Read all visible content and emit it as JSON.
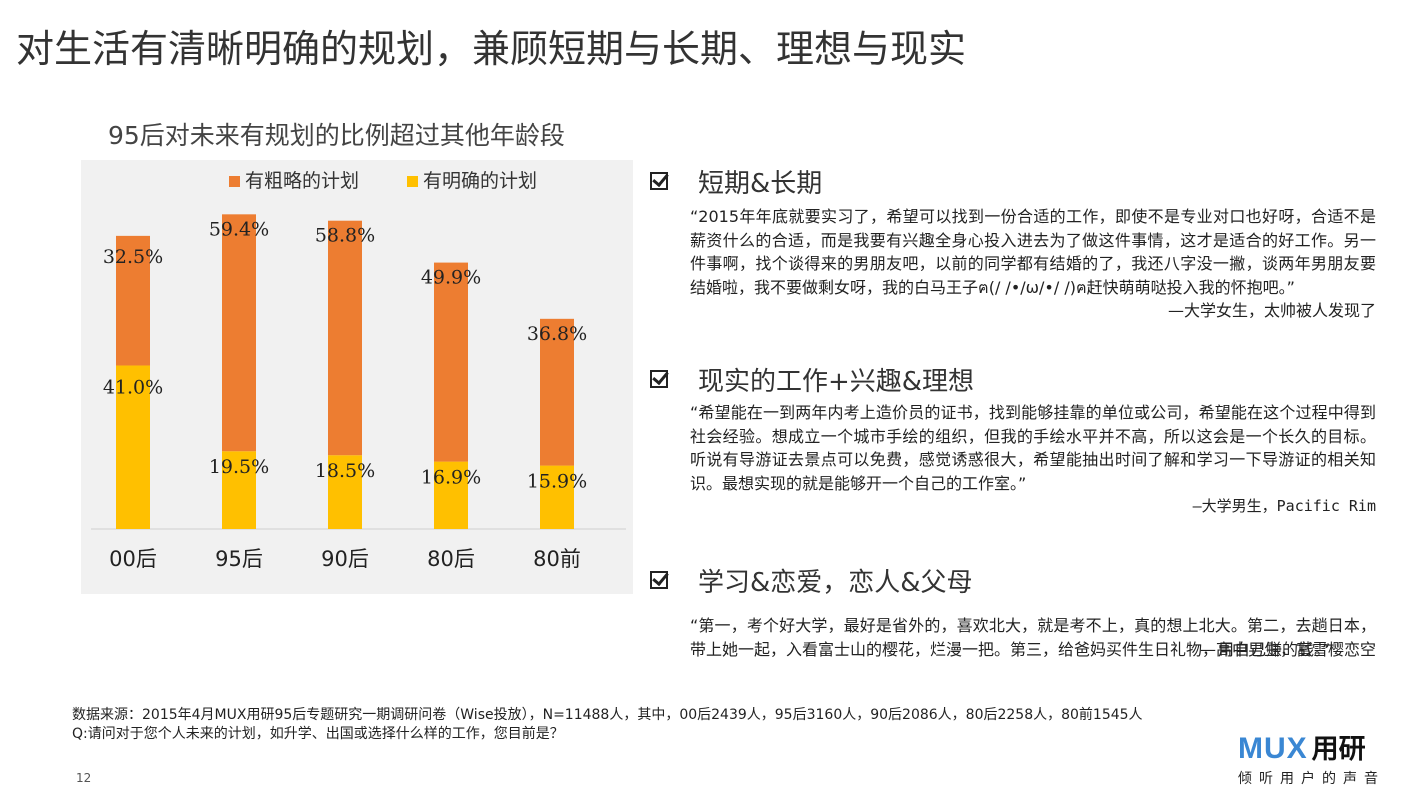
{
  "page": {
    "title": "对生活有清晰明确的规划，兼顾短期与长期、理想与现实",
    "page_number": "12"
  },
  "chart_data": {
    "type": "bar",
    "stacked": true,
    "title": "95后对未来有规划的比例超过其他年龄段",
    "categories": [
      "00后",
      "95后",
      "90后",
      "80后",
      "80前"
    ],
    "series": [
      {
        "name": "有明确的计划",
        "color": "#ffc000",
        "values": [
          41.0,
          19.5,
          18.5,
          16.9,
          15.9
        ],
        "labels": [
          "41.0%",
          "19.5%",
          "18.5%",
          "16.9%",
          "15.9%"
        ]
      },
      {
        "name": "有粗略的计划",
        "color": "#ed7d31",
        "values": [
          32.5,
          59.4,
          58.8,
          49.9,
          36.8
        ],
        "labels": [
          "32.5%",
          "59.4%",
          "58.8%",
          "49.9%",
          "36.8%"
        ]
      }
    ],
    "legend_order": [
      "有粗略的计划",
      "有明确的计划"
    ],
    "legend_position": "top",
    "ylim": [
      0,
      85
    ],
    "grid": false,
    "xlabel": "",
    "ylabel": ""
  },
  "sections": [
    {
      "title": "短期&长期",
      "quote": "“2015年年底就要实习了，希望可以找到一份合适的工作，即使不是专业对口也好呀，合适不是薪资什么的合适，而是我要有兴趣全身心投入进去为了做这件事情，这才是适合的好工作。另一件事啊，找个谈得来的男朋友吧，以前的同学都有结婚的了，我还八字没一撇，谈两年男朋友要结婚啦，我不要做剩女呀，我的白马王子ฅ(/ /•/ω/•/ /)ฅ赶快萌萌哒投入我的怀抱吧。”",
      "author": "—大学女生，太帅被人发现了"
    },
    {
      "title": "现实的工作+兴趣&理想",
      "quote": "“希望能在一到两年内考上造价员的证书，找到能够挂靠的单位或公司，希望能在这个过程中得到社会经验。想成立一个城市手绘的组织，但我的手绘水平并不高，所以这会是一个长久的目标。听说有导游证去景点可以免费，感觉诱惑很大，希望能抽出时间了解和学习一下导游证的相关知识。最想实现的就是能够开一个自己的工作室。”",
      "author": "—大学男生，Pacific Rim"
    },
    {
      "title": "学习&恋爱，恋人&父母",
      "quote": "“第一，考个好大学，最好是省外的，喜欢北大，就是考不上，真的想上北大。第二，去趟日本，带上她一起，入看富士山的樱花，烂漫一把。第三，给爸妈买件生日礼物，用自己赚的钱。”",
      "author": "—高中男生，富雪樱恋空"
    }
  ],
  "footer": {
    "source_line1": "数据来源：2015年4月MUX用研95后专题研究一期调研问卷（Wise投放），N=11488人，其中，00后2439人，95后3160人，90后2086人，80后2258人，80前1545人",
    "source_line2": "Q:请问对于您个人未来的计划，如升学、出国或选择什么样的工作，您目前是？"
  },
  "logo": {
    "mark": "MUX",
    "name": "用研",
    "tagline": "倾听用户的声音",
    "color": "#3a87d3"
  }
}
